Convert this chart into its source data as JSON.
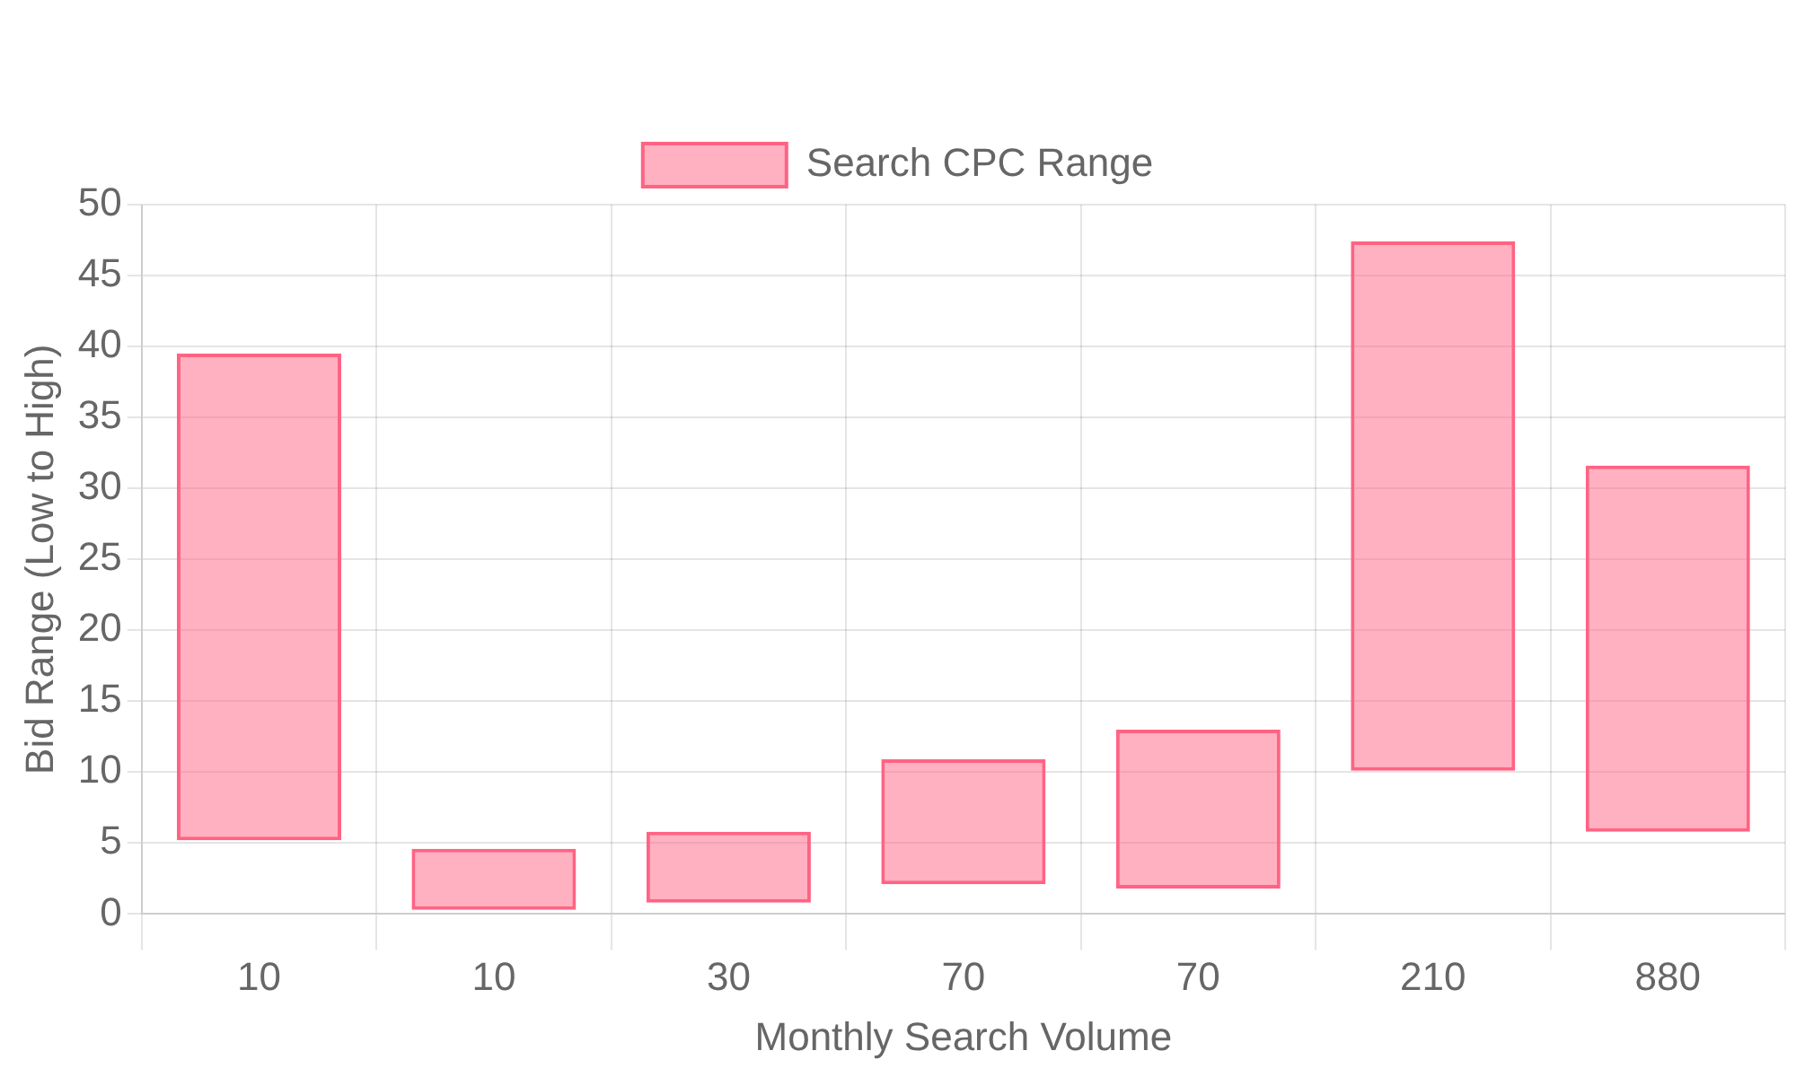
{
  "chart_data": {
    "type": "bar",
    "xlabel": "Monthly Search Volume",
    "ylabel": "Bid Range (Low to High)",
    "categories": [
      "10",
      "10",
      "30",
      "70",
      "70",
      "210",
      "880"
    ],
    "series": [
      {
        "name": "Search CPC Range",
        "color": "#ff6384",
        "base": [
          5.2,
          0.3,
          0.8,
          2.1,
          1.8,
          10.1,
          5.8
        ],
        "values": [
          34.3,
          4.3,
          5.0,
          8.8,
          11.2,
          37.3,
          25.8
        ]
      }
    ],
    "ylim": [
      0,
      50
    ],
    "yticks": [
      0,
      5,
      10,
      15,
      20,
      25,
      30,
      35,
      40,
      45,
      50
    ],
    "grid": true,
    "legend": "top"
  }
}
